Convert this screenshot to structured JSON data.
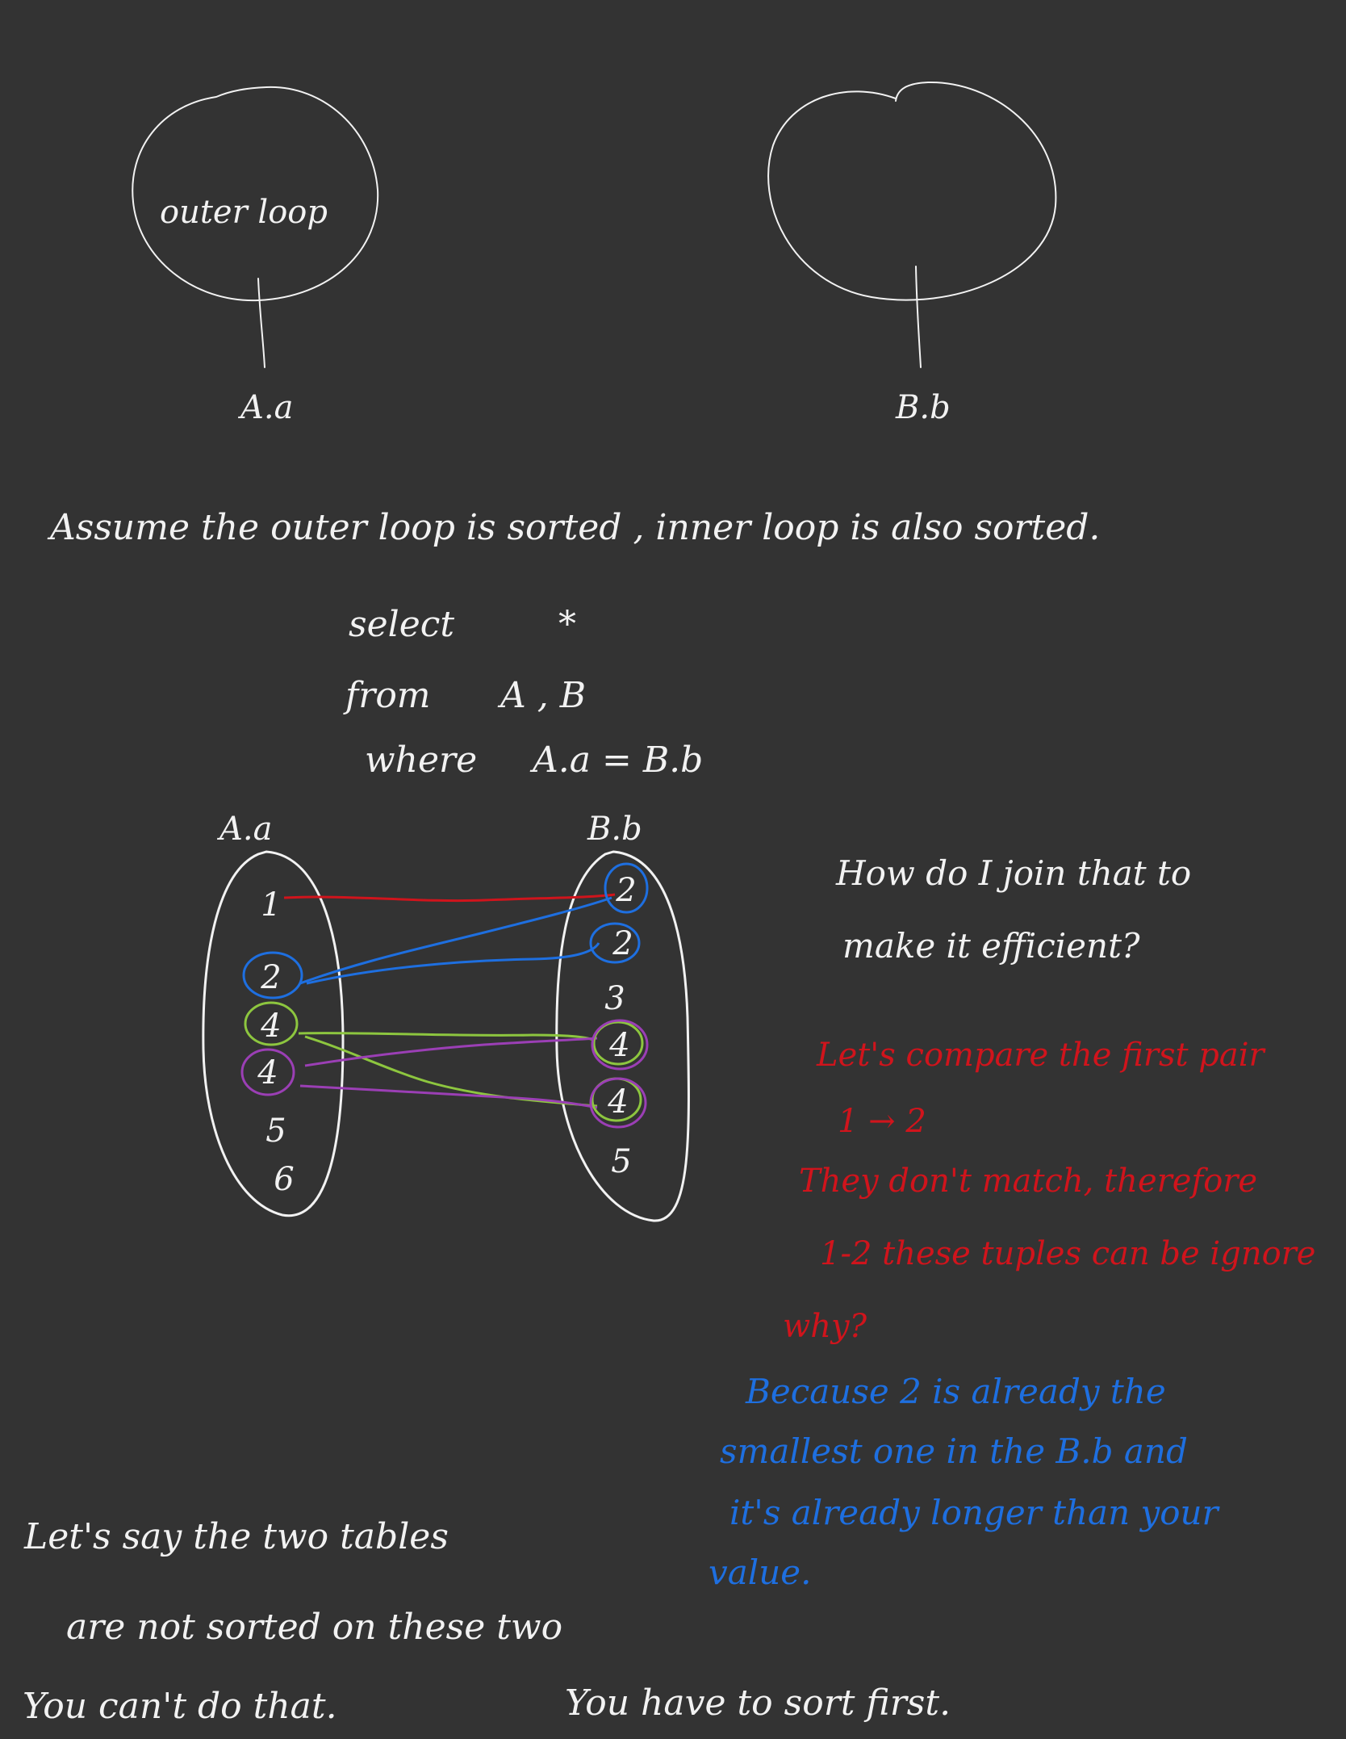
{
  "colors": {
    "background": "#333333",
    "white": "#f2f2f2",
    "red": "#d0141c",
    "blue": "#1e6fe0",
    "green": "#8dc63f",
    "purple": "#9b3fb5"
  },
  "trees": {
    "left_label": "outer loop",
    "left_key": "A.a",
    "right_key": "B.b"
  },
  "assumption": "Assume the outer loop is sorted , inner loop is also sorted.",
  "query": {
    "select_kw": "select",
    "select_val": "*",
    "from_kw": "from",
    "from_val": "A , B",
    "where_kw": "where",
    "where_val": "A.a = B.b"
  },
  "join_diagram": {
    "left_header": "A.a",
    "right_header": "B.b",
    "left_values": [
      "1",
      "2",
      "4",
      "4",
      "5",
      "6"
    ],
    "right_values": [
      "2",
      "2",
      "3",
      "4",
      "4",
      "5"
    ]
  },
  "question": {
    "line1": "How do I join that to",
    "line2": "make it efficient?"
  },
  "red_note": {
    "line1": "Let's compare the first pair",
    "line2": "1 → 2",
    "line3": "They don't match, therefore",
    "line4": "1-2 these tuples can be ignore",
    "line5": "why?"
  },
  "blue_note": {
    "line1": "Because 2 is already the",
    "line2": "smallest one in the B.b and",
    "line3": "it's already longer than your",
    "line4": "value."
  },
  "bottom_note": {
    "line1": "Let's say the two tables",
    "line2": "are not sorted on these two",
    "line3": "You can't do that.",
    "line4": "You have to sort first."
  }
}
